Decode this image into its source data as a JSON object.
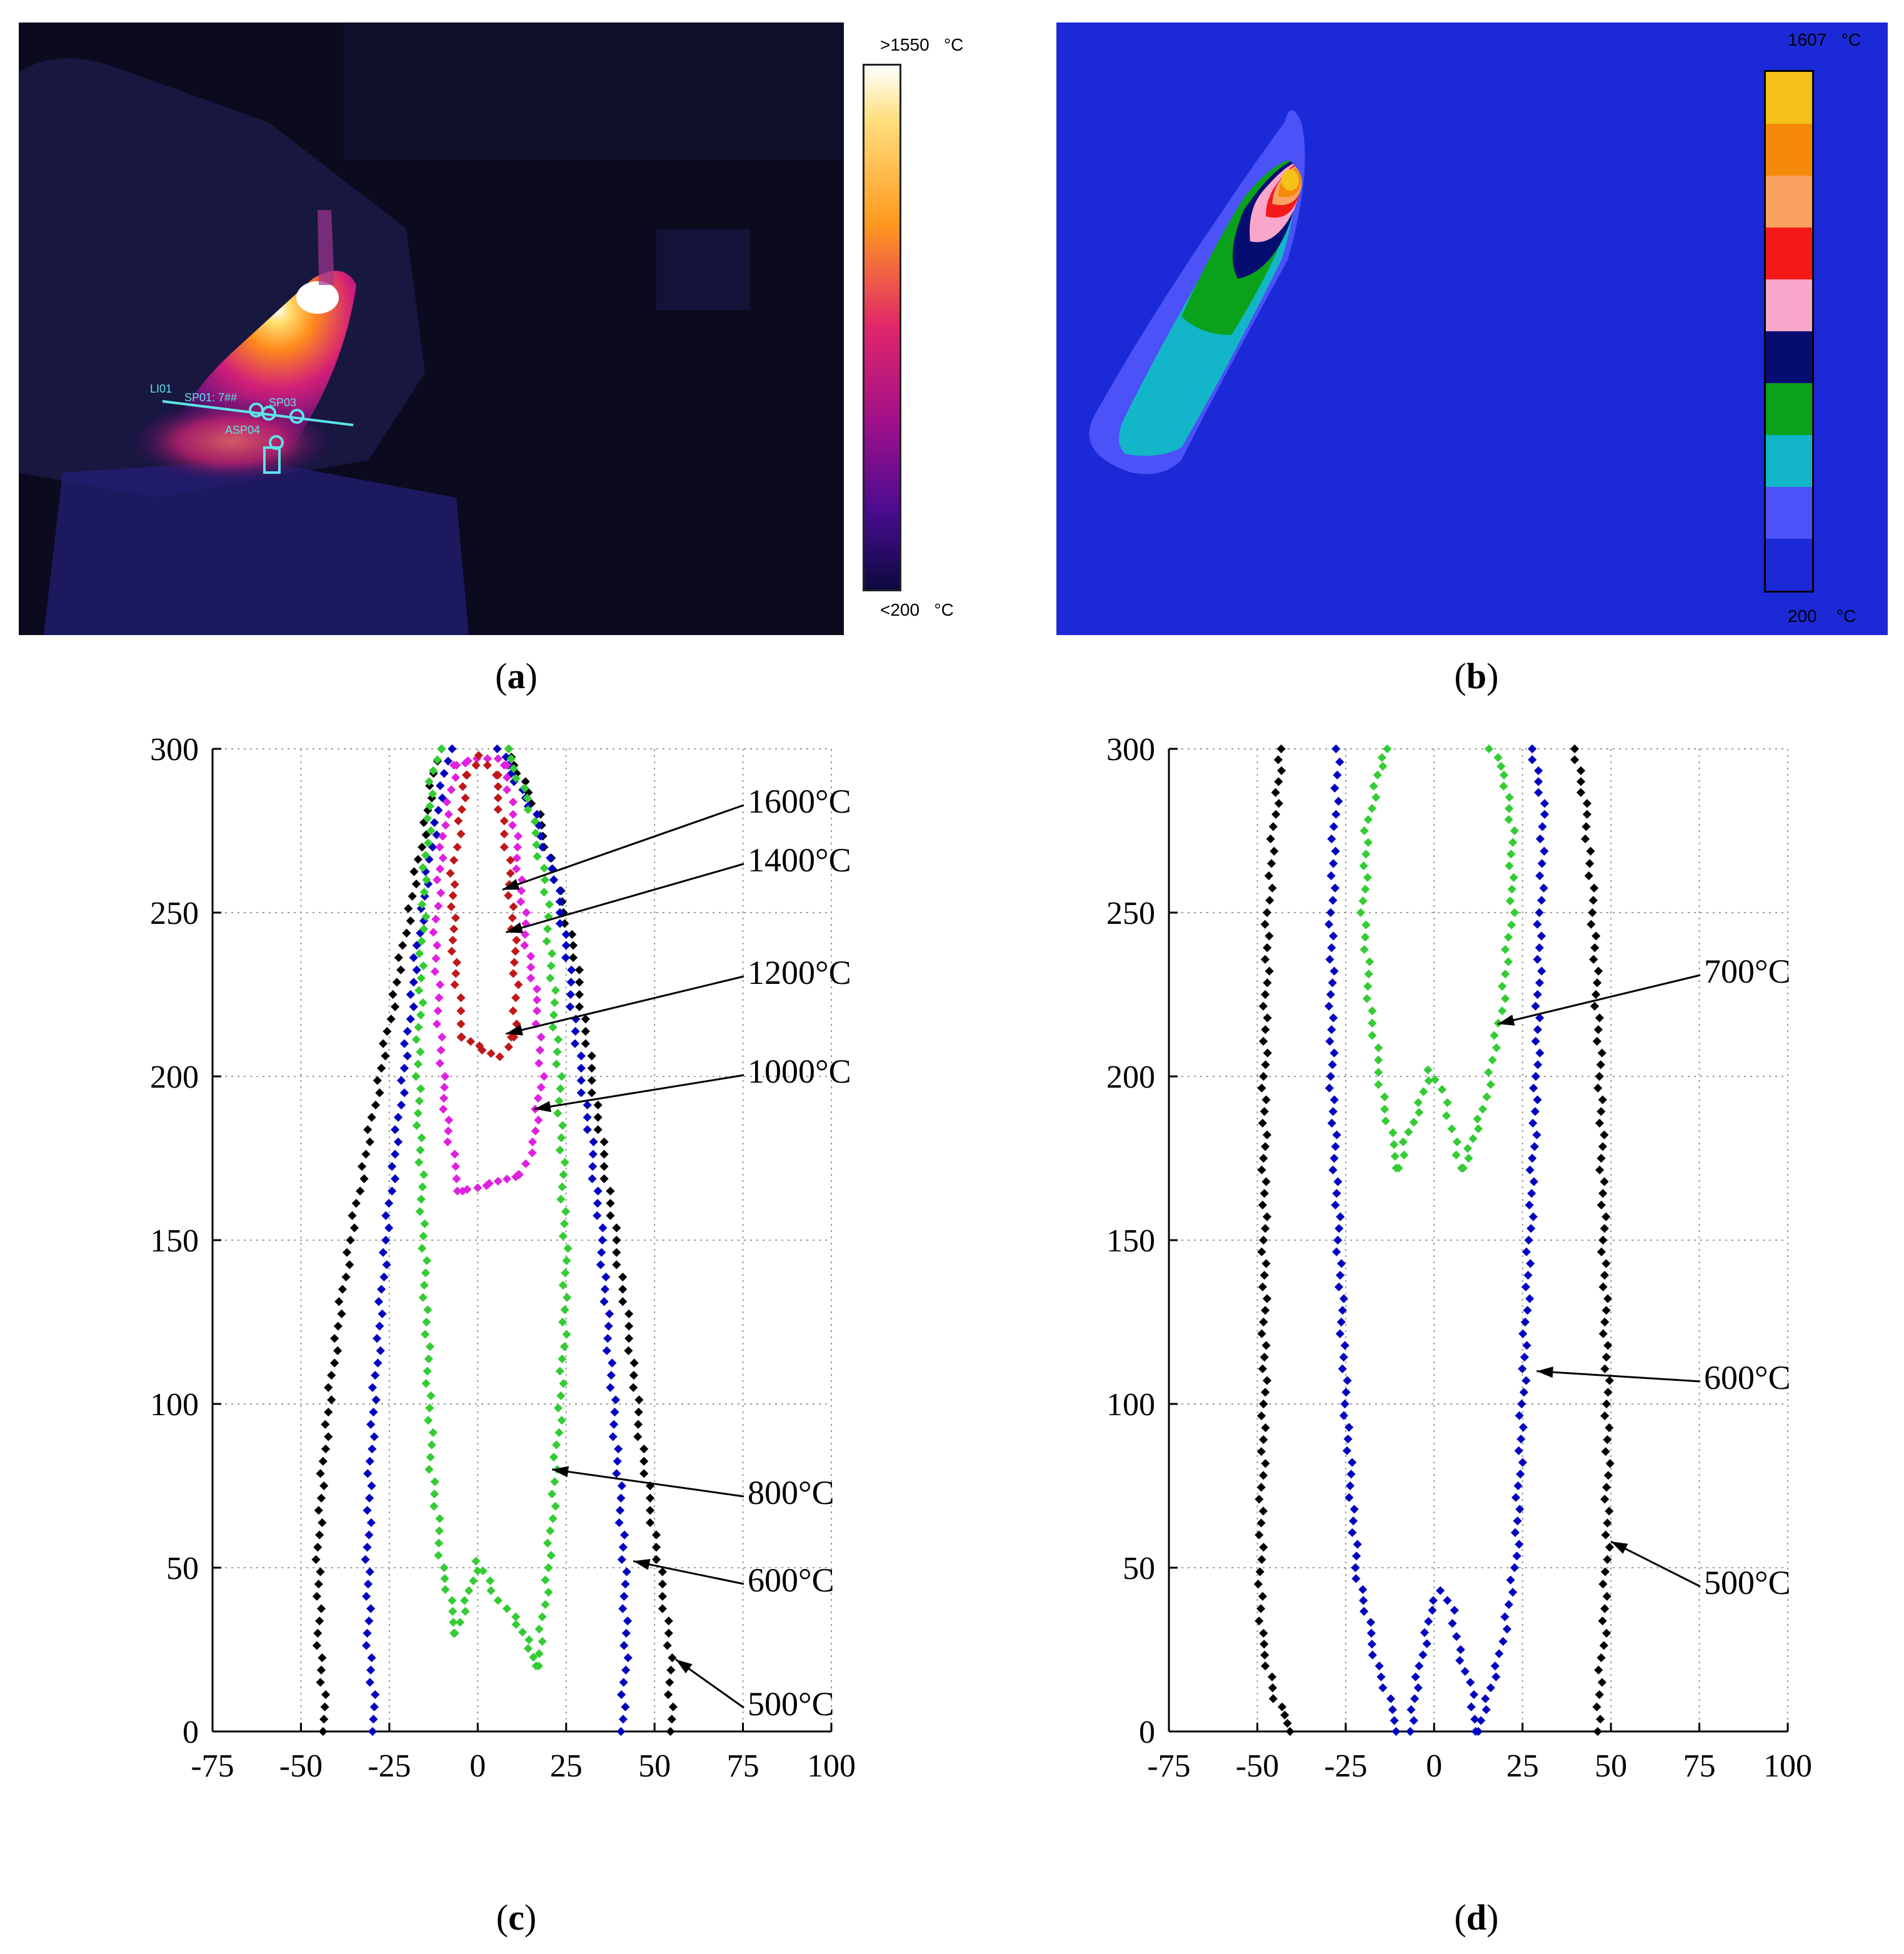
{
  "panels": {
    "a": {
      "caption_open": "(",
      "caption_letter": "a",
      "caption_close": ")",
      "colorbar_max": ">1550",
      "colorbar_min": "<200",
      "unit": "°C",
      "overlay_labels": [
        "LI01",
        "SP01: 7##",
        "SP03",
        "ASP04"
      ],
      "colors": {
        "background": "#0b0a1e",
        "hot": "#ffffff",
        "warm": "#ff9a1e",
        "mid": "#c2127a",
        "cool": "#2a0a78"
      }
    },
    "b": {
      "caption_open": "(",
      "caption_letter": "b",
      "caption_close": ")",
      "colorbar_max": "1607",
      "colorbar_min": "200",
      "unit": "°C",
      "palette": [
        "#f5c21a",
        "#f58a0a",
        "#f9a262",
        "#f41a1a",
        "#f9a6cb",
        "#060d70",
        "#0aa21a",
        "#12b6c8",
        "#4a52f8",
        "#1b29d6"
      ],
      "background": "#1b29d6"
    },
    "c": {
      "caption_open": "(",
      "caption_letter": "c",
      "caption_close": ")",
      "labels": [
        "1600°C",
        "1400°C",
        "1200°C",
        "1000°C",
        "800°C",
        "600°C",
        "500°C"
      ]
    },
    "d": {
      "caption_open": "(",
      "caption_letter": "d",
      "caption_close": ")",
      "labels": [
        "700°C",
        "600°C",
        "500°C"
      ]
    }
  },
  "chart_data": [
    {
      "panel": "c",
      "type": "scatter",
      "title": "",
      "xlabel": "",
      "ylabel": "",
      "xlim": [
        -75,
        100
      ],
      "ylim": [
        0,
        300
      ],
      "xticks": [
        -75,
        -50,
        -25,
        0,
        25,
        50,
        75,
        100
      ],
      "yticks": [
        0,
        50,
        100,
        150,
        200,
        250,
        300
      ],
      "grid": true,
      "series": [
        {
          "name": "500°C",
          "color": "#000000",
          "left": [
            [
              -43,
              0
            ],
            [
              -45,
              30
            ],
            [
              -45,
              60
            ],
            [
              -43,
              90
            ],
            [
              -40,
              120
            ],
            [
              -36,
              150
            ],
            [
              -31,
              180
            ],
            [
              -26,
              210
            ],
            [
              -21,
              240
            ],
            [
              -16,
              270
            ],
            [
              -11,
              300
            ]
          ],
          "right": [
            [
              55,
              0
            ],
            [
              54,
              30
            ],
            [
              50,
              60
            ],
            [
              46,
              90
            ],
            [
              43,
              120
            ],
            [
              39,
              150
            ],
            [
              35,
              180
            ],
            [
              31,
              210
            ],
            [
              27,
              240
            ],
            [
              22,
              260
            ],
            [
              17,
              280
            ],
            [
              13,
              290
            ],
            [
              8,
              300
            ]
          ],
          "label_at": [
            56,
            22
          ]
        },
        {
          "name": "600°C",
          "color": "#0000c0",
          "left": [
            [
              -29,
              0
            ],
            [
              -31,
              30
            ],
            [
              -31,
              60
            ],
            [
              -30,
              90
            ],
            [
              -28,
              120
            ],
            [
              -26,
              150
            ],
            [
              -23,
              180
            ],
            [
              -20,
              210
            ],
            [
              -17,
              240
            ],
            [
              -13,
              270
            ],
            [
              -8,
              300
            ]
          ],
          "right": [
            [
              41,
              0
            ],
            [
              42,
              30
            ],
            [
              41,
              60
            ],
            [
              39,
              90
            ],
            [
              37,
              120
            ],
            [
              35,
              150
            ],
            [
              32,
              180
            ],
            [
              28,
              210
            ],
            [
              25,
              240
            ],
            [
              22,
              260
            ],
            [
              16,
              280
            ],
            [
              11,
              290
            ],
            [
              6,
              300
            ]
          ],
          "label_at": [
            44,
            52
          ]
        },
        {
          "name": "800°C",
          "color": "#33cc33",
          "left": [
            [
              -6,
              30
            ],
            [
              -10,
              50
            ],
            [
              -13,
              80
            ],
            [
              -14,
              110
            ],
            [
              -15,
              140
            ],
            [
              -16,
              170
            ],
            [
              -17,
              200
            ],
            [
              -16,
              230
            ],
            [
              -15,
              260
            ],
            [
              -13,
              290
            ],
            [
              -11,
              300
            ]
          ],
          "right": [
            [
              17,
              20
            ],
            [
              20,
              50
            ],
            [
              22,
              80
            ],
            [
              24,
              110
            ],
            [
              25,
              140
            ],
            [
              24,
              170
            ],
            [
              23,
              200
            ],
            [
              21,
              230
            ],
            [
              19,
              260
            ],
            [
              14,
              285
            ],
            [
              8,
              300
            ]
          ],
          "valley": [
            [
              -6,
              30
            ],
            [
              -3,
              40
            ],
            [
              0,
              52
            ],
            [
              3,
              46
            ],
            [
              6,
              40
            ],
            [
              10,
              35
            ],
            [
              14,
              28
            ],
            [
              17,
              20
            ]
          ],
          "label_at": [
            21,
            80
          ]
        },
        {
          "name": "1000°C",
          "color": "#e020e0",
          "left": [
            [
              -5,
              165
            ],
            [
              -8,
              180
            ],
            [
              -10,
              200
            ],
            [
              -11,
              220
            ],
            [
              -12,
              240
            ],
            [
              -11,
              260
            ],
            [
              -9,
              280
            ],
            [
              -6,
              295
            ]
          ],
          "right": [
            [
              12,
              170
            ],
            [
              16,
              180
            ],
            [
              18,
              200
            ],
            [
              17,
              220
            ],
            [
              14,
              240
            ],
            [
              12,
              260
            ],
            [
              10,
              280
            ],
            [
              8,
              295
            ]
          ],
          "bottom": [
            [
              -5,
              165
            ],
            [
              0,
              166
            ],
            [
              6,
              168
            ],
            [
              12,
              170
            ]
          ],
          "top": [
            [
              -6,
              295
            ],
            [
              0,
              297
            ],
            [
              5,
              297
            ],
            [
              8,
              295
            ]
          ],
          "label_at": [
            16,
            190
          ]
        },
        {
          "name": "1200°C",
          "color": "#c01818",
          "left": [
            [
              -4,
              212
            ],
            [
              -6,
              228
            ],
            [
              -7,
              245
            ],
            [
              -7,
              262
            ],
            [
              -5,
              278
            ],
            [
              -3,
              292
            ]
          ],
          "right": [
            [
              10,
              212
            ],
            [
              11,
              228
            ],
            [
              10,
              245
            ],
            [
              9,
              262
            ],
            [
              7,
              278
            ],
            [
              5,
              292
            ]
          ],
          "bottom": [
            [
              -4,
              212
            ],
            [
              2,
              208
            ],
            [
              6,
              206
            ],
            [
              10,
              212
            ]
          ],
          "top": [
            [
              -3,
              292
            ],
            [
              1,
              298
            ],
            [
              5,
              292
            ]
          ],
          "label_at": [
            8,
            213
          ]
        },
        {
          "name": "1400°C",
          "color": "#c01818",
          "label_at": [
            8,
            244
          ]
        },
        {
          "name": "1600°C",
          "color": "#c01818",
          "label_at": [
            7,
            257
          ]
        }
      ]
    },
    {
      "panel": "d",
      "type": "scatter",
      "title": "",
      "xlabel": "",
      "ylabel": "",
      "xlim": [
        -75,
        100
      ],
      "ylim": [
        0,
        300
      ],
      "xticks": [
        -75,
        -50,
        -25,
        0,
        25,
        50,
        75,
        100
      ],
      "yticks": [
        0,
        50,
        100,
        150,
        200,
        250,
        300
      ],
      "grid": true,
      "series": [
        {
          "name": "500°C",
          "color": "#000000",
          "left": [
            [
              -40,
              0
            ],
            [
              -45,
              10
            ],
            [
              -49,
              30
            ],
            [
              -49,
              60
            ],
            [
              -48,
              100
            ],
            [
              -48,
              150
            ],
            [
              -48,
              200
            ],
            [
              -47,
              250
            ],
            [
              -45,
              280
            ],
            [
              -43,
              300
            ]
          ],
          "right": [
            [
              46,
              0
            ],
            [
              48,
              30
            ],
            [
              49,
              60
            ],
            [
              49,
              100
            ],
            [
              48,
              150
            ],
            [
              47,
              200
            ],
            [
              45,
              250
            ],
            [
              43,
              280
            ],
            [
              40,
              300
            ]
          ],
          "label_at": [
            50,
            58
          ]
        },
        {
          "name": "600°C",
          "color": "#0000c0",
          "left": [
            [
              -10,
              0
            ],
            [
              -16,
              20
            ],
            [
              -22,
              50
            ],
            [
              -25,
              100
            ],
            [
              -27,
              150
            ],
            [
              -29,
              200
            ],
            [
              -29,
              250
            ],
            [
              -28,
              280
            ],
            [
              -27,
              300
            ]
          ],
          "right": [
            [
              12,
              0
            ],
            [
              18,
              20
            ],
            [
              23,
              50
            ],
            [
              25,
              100
            ],
            [
              27,
              150
            ],
            [
              29,
              200
            ],
            [
              30,
              250
            ],
            [
              31,
              280
            ],
            [
              28,
              300
            ]
          ],
          "valley": [
            [
              -7,
              0
            ],
            [
              -4,
              20
            ],
            [
              -1,
              37
            ],
            [
              2,
              43
            ],
            [
              5,
              37
            ],
            [
              7,
              25
            ],
            [
              10,
              15
            ],
            [
              12,
              0
            ]
          ],
          "label_at": [
            29,
            110
          ]
        },
        {
          "name": "700°C",
          "color": "#33cc33",
          "left": [
            [
              -10,
              172
            ],
            [
              -14,
              190
            ],
            [
              -18,
              220
            ],
            [
              -20,
              250
            ],
            [
              -19,
              275
            ],
            [
              -16,
              292
            ],
            [
              -13,
              300
            ]
          ],
          "right": [
            [
              8,
              172
            ],
            [
              14,
              190
            ],
            [
              19,
              220
            ],
            [
              22,
              250
            ],
            [
              22,
              275
            ],
            [
              20,
              292
            ],
            [
              16,
              300
            ]
          ],
          "valley": [
            [
              -10,
              172
            ],
            [
              -8,
              180
            ],
            [
              -4,
              192
            ],
            [
              -1,
              202
            ],
            [
              2,
              196
            ],
            [
              4,
              188
            ],
            [
              6,
              180
            ],
            [
              8,
              172
            ]
          ],
          "label_at": [
            18,
            216
          ]
        }
      ]
    }
  ]
}
